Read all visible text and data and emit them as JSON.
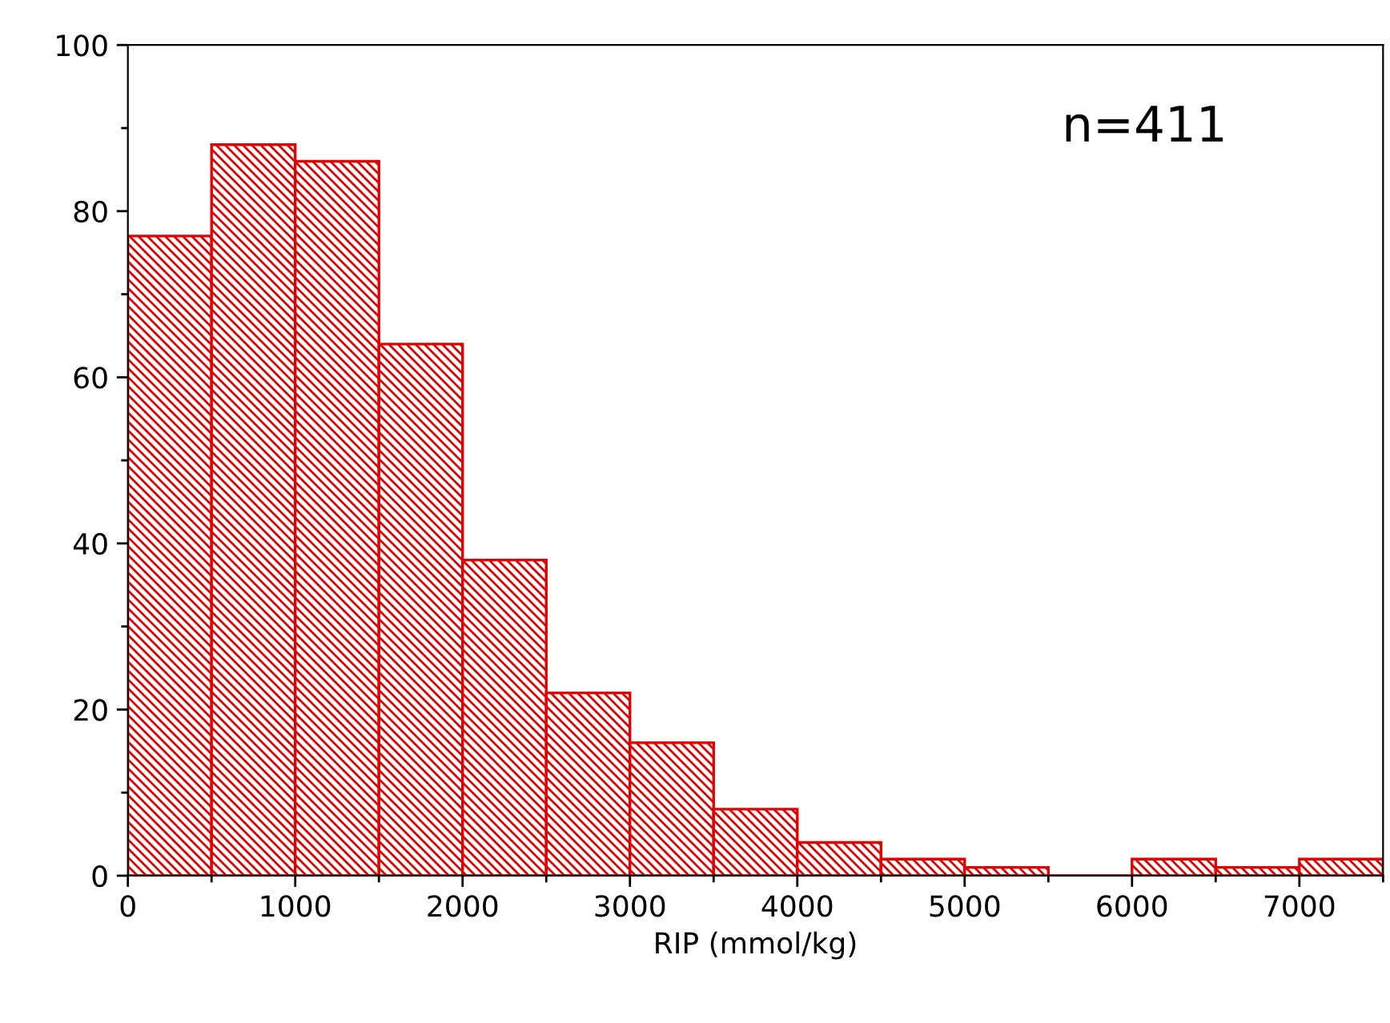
{
  "chart_data": {
    "type": "histogram",
    "xlabel": "RIP (mmol/kg)",
    "bins": [
      0,
      500,
      1000,
      1500,
      2000,
      2500,
      3000,
      3500,
      4000,
      4500,
      5000,
      5500,
      6000,
      6500,
      7000,
      7500
    ],
    "values": [
      77,
      88,
      86,
      64,
      38,
      22,
      16,
      8,
      4,
      2,
      1,
      0,
      2,
      1,
      2
    ],
    "color": "#e00000",
    "xlim": [
      0,
      7500
    ],
    "ylim": [
      0,
      100
    ],
    "xticks": [
      0,
      {
        "value": 500,
        "label": null
      },
      1000,
      {
        "value": 1500,
        "label": null
      },
      2000,
      {
        "value": 2500,
        "label": null
      },
      3000,
      {
        "value": 3500,
        "label": null
      },
      4000,
      {
        "value": 4500,
        "label": null
      },
      5000,
      {
        "value": 5500,
        "label": null
      },
      6000,
      {
        "value": 6500,
        "label": null
      },
      7000,
      {
        "value": 7500,
        "label": null
      }
    ],
    "yticks": [
      0,
      {
        "value": 10,
        "label": null
      },
      20,
      {
        "value": 30,
        "label": null
      },
      40,
      {
        "value": 50,
        "label": null
      },
      60,
      {
        "value": 70,
        "label": null
      },
      80,
      {
        "value": 90,
        "label": null
      },
      100
    ],
    "annotations": [
      "n=411"
    ],
    "grid": false,
    "legend": false
  }
}
